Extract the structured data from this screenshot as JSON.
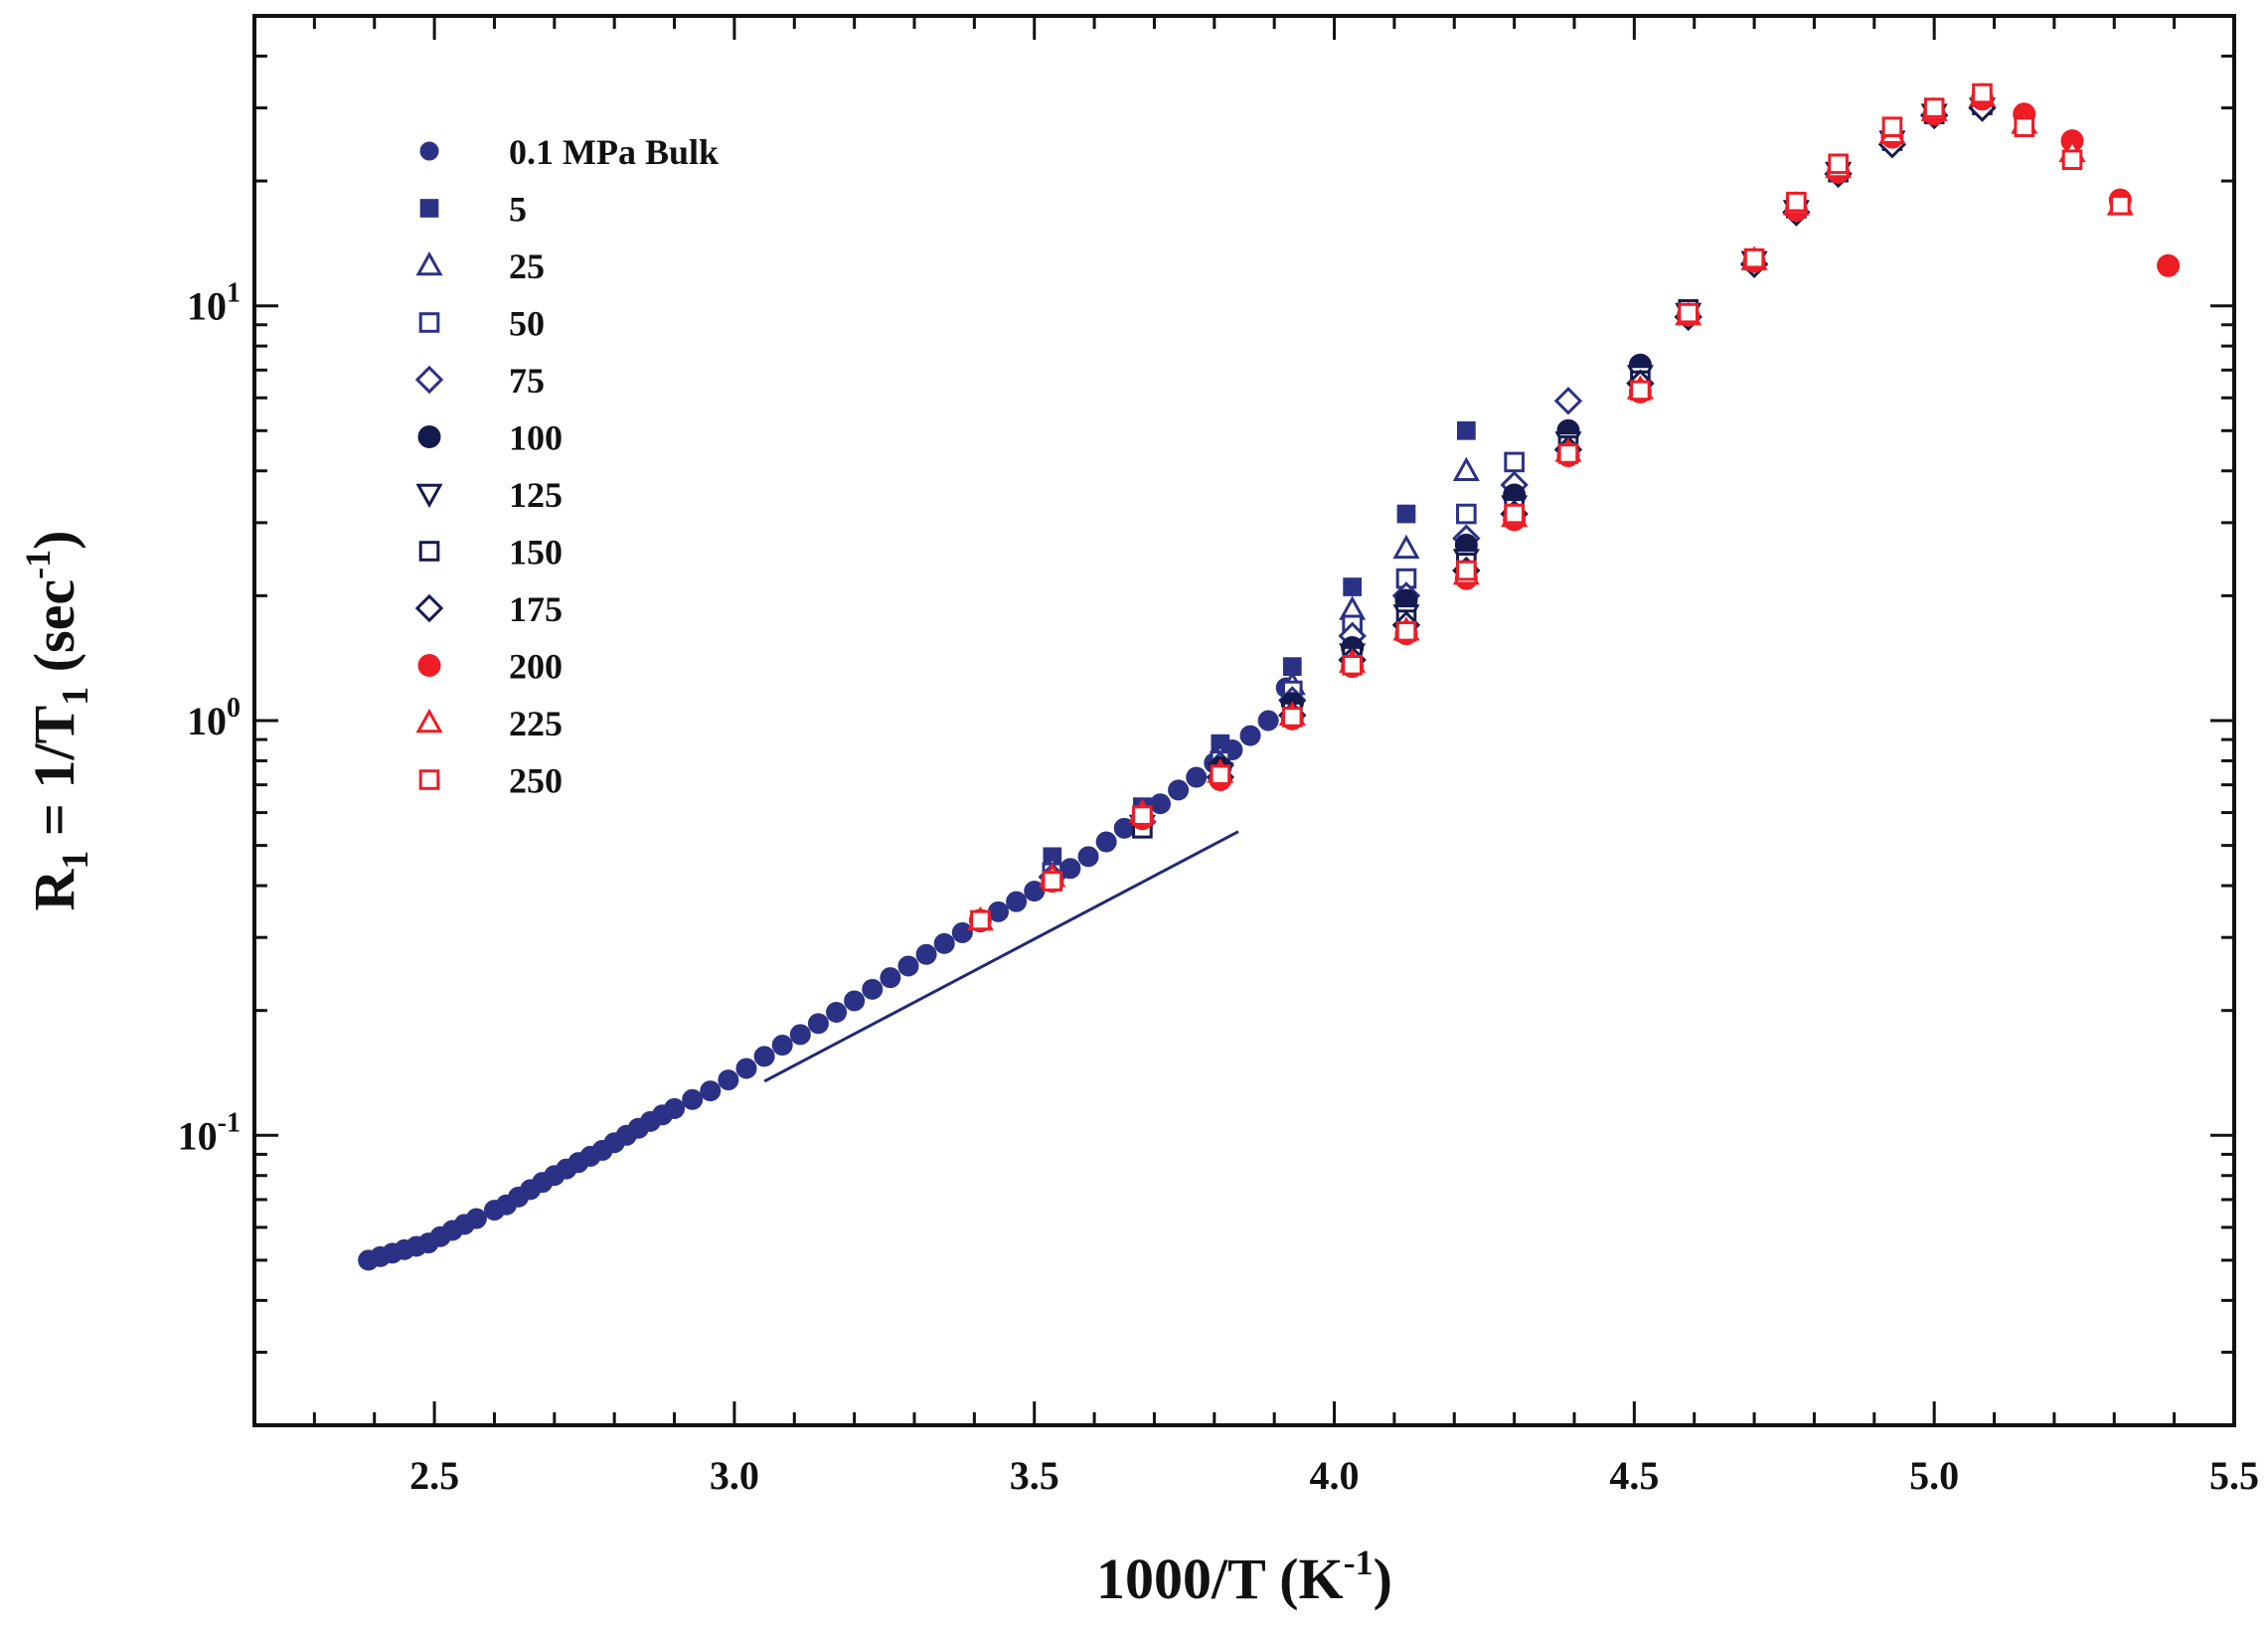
{
  "chart_data": {
    "type": "scatter",
    "xlabel": {
      "main": "1000/T (K",
      "sup": "-1",
      "tail": ")"
    },
    "ylabel": {
      "r": "R",
      "rsub": "1",
      "mid": " = 1/T",
      "tsub": "1",
      "unit": " (sec",
      "usup": "-1",
      "tail": ")"
    },
    "xlim": [
      2.2,
      5.5
    ],
    "ylim": [
      0.02,
      50
    ],
    "yscale": "log",
    "x_ticks": [
      {
        "value": 2.5,
        "label": "2.5"
      },
      {
        "value": 3.0,
        "label": "3.0"
      },
      {
        "value": 3.5,
        "label": "3.5"
      },
      {
        "value": 4.0,
        "label": "4.0"
      },
      {
        "value": 4.5,
        "label": "4.5"
      },
      {
        "value": 5.0,
        "label": "5.0"
      },
      {
        "value": 5.5,
        "label": "5.5"
      }
    ],
    "y_ticks": [
      {
        "value": 0.1,
        "base": "10",
        "exp": "-1"
      },
      {
        "value": 1,
        "base": "10",
        "exp": "0"
      },
      {
        "value": 10,
        "base": "10",
        "exp": "1"
      }
    ],
    "legend_position": "top-left",
    "fit_line": {
      "color": "#1f2a7a",
      "x": [
        3.05,
        3.84
      ],
      "y": [
        0.135,
        0.54
      ]
    },
    "bulk_series": {
      "name": "0.1 MPa Bulk",
      "marker": "circle-filled",
      "color": "#2b3286",
      "x": [
        2.39,
        2.41,
        2.43,
        2.45,
        2.47,
        2.49,
        2.51,
        2.53,
        2.55,
        2.57,
        2.6,
        2.62,
        2.64,
        2.66,
        2.68,
        2.7,
        2.72,
        2.74,
        2.76,
        2.78,
        2.8,
        2.82,
        2.84,
        2.86,
        2.88,
        2.9,
        2.93,
        2.96,
        2.99,
        3.02,
        3.05,
        3.08,
        3.11,
        3.14,
        3.17,
        3.2,
        3.23,
        3.26,
        3.29,
        3.32,
        3.35,
        3.38,
        3.41,
        3.44,
        3.47,
        3.5,
        3.53,
        3.56,
        3.59,
        3.62,
        3.65,
        3.68,
        3.71,
        3.74,
        3.77,
        3.8,
        3.83,
        3.86,
        3.89,
        3.92
      ],
      "y": [
        0.05,
        0.051,
        0.052,
        0.053,
        0.054,
        0.055,
        0.057,
        0.059,
        0.061,
        0.063,
        0.066,
        0.068,
        0.071,
        0.074,
        0.077,
        0.08,
        0.083,
        0.086,
        0.089,
        0.092,
        0.096,
        0.1,
        0.104,
        0.108,
        0.112,
        0.116,
        0.122,
        0.128,
        0.136,
        0.145,
        0.155,
        0.165,
        0.175,
        0.186,
        0.198,
        0.211,
        0.225,
        0.24,
        0.256,
        0.273,
        0.29,
        0.308,
        0.327,
        0.346,
        0.366,
        0.388,
        0.412,
        0.44,
        0.47,
        0.51,
        0.55,
        0.59,
        0.63,
        0.68,
        0.73,
        0.79,
        0.85,
        0.92,
        1.0,
        1.2
      ]
    },
    "series": [
      {
        "name": "5",
        "marker": "square-filled",
        "color": "#2b3286",
        "x": [
          3.53,
          3.68,
          3.81,
          3.93,
          4.03,
          4.12,
          4.22
        ],
        "y": [
          0.47,
          0.62,
          0.88,
          1.35,
          2.1,
          3.15,
          5.0
        ]
      },
      {
        "name": "25",
        "marker": "triangle-up-open",
        "color": "#2b3286",
        "x": [
          3.53,
          3.68,
          3.81,
          3.93,
          4.03,
          4.12,
          4.22
        ],
        "y": [
          0.44,
          0.6,
          0.82,
          1.22,
          1.85,
          2.6,
          4.0
        ]
      },
      {
        "name": "50",
        "marker": "square-open",
        "color": "#2b3286",
        "x": [
          3.53,
          3.68,
          3.81,
          3.93,
          4.03,
          4.12,
          4.22,
          4.3
        ],
        "y": [
          0.43,
          0.58,
          0.8,
          1.18,
          1.7,
          2.2,
          3.15,
          4.2
        ]
      },
      {
        "name": "75",
        "marker": "diamond-open",
        "color": "#2b3286",
        "x": [
          3.53,
          3.68,
          3.81,
          3.93,
          4.03,
          4.12,
          4.22,
          4.3,
          4.39
        ],
        "y": [
          0.42,
          0.57,
          0.78,
          1.12,
          1.6,
          2.0,
          2.75,
          3.7,
          5.9
        ]
      },
      {
        "name": "100",
        "marker": "circle-filled",
        "color": "#151a4e",
        "x": [
          3.81,
          3.93,
          4.03,
          4.12,
          4.22,
          4.3,
          4.39,
          4.51
        ],
        "y": [
          0.77,
          1.1,
          1.5,
          1.95,
          2.65,
          3.5,
          5.0,
          7.2
        ]
      },
      {
        "name": "125",
        "marker": "triangle-down-open",
        "color": "#151a4e",
        "x": [
          3.68,
          3.81,
          3.93,
          4.03,
          4.12,
          4.22,
          4.3,
          4.39,
          4.51,
          4.59,
          4.7,
          4.77,
          4.84,
          4.93,
          5.0,
          5.08
        ],
        "y": [
          0.56,
          0.75,
          1.06,
          1.45,
          1.8,
          2.45,
          3.3,
          4.7,
          6.8,
          9.6,
          12.8,
          17.0,
          21.0,
          25.0,
          29.0,
          30.0
        ]
      },
      {
        "name": "150",
        "marker": "square-open",
        "color": "#151a4e",
        "x": [
          3.68,
          3.81,
          3.93,
          4.03,
          4.12,
          4.22,
          4.3,
          4.39,
          4.51,
          4.59,
          4.7,
          4.77,
          4.84,
          4.93,
          5.0,
          5.08
        ],
        "y": [
          0.55,
          0.74,
          1.05,
          1.43,
          1.75,
          2.4,
          3.25,
          4.6,
          6.6,
          9.8,
          12.9,
          17.2,
          21.0,
          25.0,
          29.0,
          30.5
        ]
      },
      {
        "name": "175",
        "marker": "diamond-open",
        "color": "#151a4e",
        "x": [
          3.81,
          3.93,
          4.03,
          4.12,
          4.22,
          4.3,
          4.39,
          4.51,
          4.59,
          4.7,
          4.77,
          4.84,
          4.93,
          5.0,
          5.08
        ],
        "y": [
          0.73,
          1.03,
          1.4,
          1.7,
          2.3,
          3.15,
          4.5,
          6.5,
          9.4,
          12.6,
          16.8,
          20.8,
          24.5,
          28.8,
          30.0
        ]
      },
      {
        "name": "200",
        "marker": "circle-filled",
        "color": "#ee1c25",
        "x": [
          3.41,
          3.53,
          3.68,
          3.81,
          3.93,
          4.03,
          4.12,
          4.22,
          4.3,
          4.39,
          4.51,
          4.59,
          4.7,
          4.77,
          4.84,
          4.93,
          5.0,
          5.08,
          5.15,
          5.23,
          5.31,
          5.39
        ],
        "y": [
          0.33,
          0.41,
          0.58,
          0.72,
          1.01,
          1.35,
          1.62,
          2.2,
          3.05,
          4.35,
          6.2,
          9.5,
          12.8,
          17.0,
          21.0,
          25.5,
          29.0,
          31.5,
          29.0,
          25.0,
          18.0,
          12.5
        ]
      },
      {
        "name": "225",
        "marker": "triangle-up-open",
        "color": "#ee1c25",
        "x": [
          3.41,
          3.53,
          3.68,
          3.81,
          3.93,
          4.03,
          4.12,
          4.22,
          4.3,
          4.39,
          4.51,
          4.59,
          4.7,
          4.77,
          4.84,
          4.93,
          5.0,
          5.08,
          5.15,
          5.23,
          5.31
        ],
        "y": [
          0.33,
          0.42,
          0.6,
          0.75,
          1.03,
          1.38,
          1.65,
          2.25,
          3.1,
          4.45,
          6.3,
          9.5,
          12.9,
          17.5,
          21.5,
          26.0,
          29.5,
          32.0,
          27.5,
          23.5,
          17.5
        ]
      },
      {
        "name": "250",
        "marker": "square-open",
        "color": "#ee1c25",
        "x": [
          3.41,
          3.53,
          3.68,
          3.81,
          3.93,
          4.03,
          4.12,
          4.22,
          4.3,
          4.39,
          4.51,
          4.59,
          4.7,
          4.77,
          4.84,
          4.93,
          5.0,
          5.08,
          5.15,
          5.23,
          5.31
        ],
        "y": [
          0.33,
          0.41,
          0.59,
          0.74,
          1.02,
          1.36,
          1.64,
          2.3,
          3.15,
          4.4,
          6.25,
          9.6,
          13.0,
          17.8,
          22.0,
          27.0,
          30.0,
          32.5,
          27.0,
          22.5,
          17.5
        ]
      }
    ]
  }
}
